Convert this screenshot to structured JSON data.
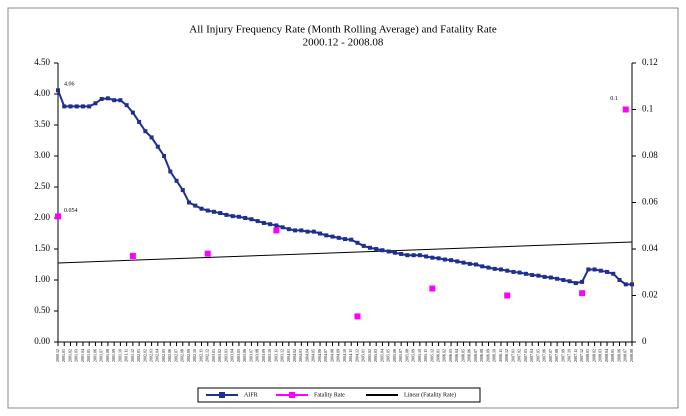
{
  "chart_data": {
    "type": "line",
    "title": "All Injury Frequency Rate (Month Rolling Average) and Fatality Rate",
    "subtitle": "2000.12 - 2008.08",
    "categories": [
      "2000.12",
      "2001.01",
      "2001.02",
      "2001.03",
      "2001.04",
      "2001.05",
      "2001.06",
      "2001.07",
      "2001.08",
      "2001.09",
      "2001.10",
      "2001.11",
      "2001.12",
      "2002.01",
      "2002.02",
      "2002.03",
      "2002.04",
      "2002.05",
      "2002.06",
      "2002.07",
      "2002.08",
      "2002.09",
      "2002.10",
      "2002.11",
      "2002.12",
      "2003.01",
      "2003.02",
      "2003.03",
      "2003.04",
      "2003.05",
      "2003.06",
      "2003.07",
      "2003.08",
      "2003.09",
      "2003.10",
      "2003.11",
      "2003.12",
      "2004.01",
      "2004.02",
      "2004.03",
      "2004.04",
      "2004.05",
      "2004.06",
      "2004.07",
      "2004.08",
      "2004.09",
      "2004.10",
      "2004.11",
      "2004.12",
      "2005.01",
      "2005.02",
      "2005.03",
      "2005.04",
      "2005.05",
      "2005.06",
      "2005.07",
      "2005.08",
      "2005.09",
      "2005.10",
      "2005.11",
      "2005.12",
      "2006.01",
      "2006.02",
      "2006.03",
      "2006.04",
      "2006.05",
      "2006.06",
      "2006.07",
      "2006.08",
      "2006.09",
      "2006.10",
      "2006.11",
      "2006.12",
      "2007.01",
      "2007.02",
      "2007.03",
      "2007.04",
      "2007.05",
      "2007.06",
      "2007.07",
      "2007.08",
      "2007.09",
      "2007.10",
      "2007.11",
      "2007.12",
      "2008.01",
      "2008.02",
      "2008.03",
      "2008.04",
      "2008.05",
      "2008.06",
      "2008.07",
      "2008.08"
    ],
    "series": [
      {
        "name": "AIFR",
        "color": "#1f2f8f",
        "marker": "square",
        "data_labels": [
          0
        ],
        "values": [
          4.06,
          3.8,
          3.8,
          3.8,
          3.8,
          3.8,
          3.85,
          3.92,
          3.93,
          3.9,
          3.9,
          3.82,
          3.7,
          3.55,
          3.4,
          3.3,
          3.15,
          3.0,
          2.75,
          2.6,
          2.45,
          2.25,
          2.2,
          2.15,
          2.12,
          2.1,
          2.08,
          2.05,
          2.03,
          2.02,
          2.0,
          1.98,
          1.95,
          1.92,
          1.9,
          1.88,
          1.85,
          1.82,
          1.8,
          1.8,
          1.78,
          1.78,
          1.75,
          1.72,
          1.7,
          1.68,
          1.66,
          1.65,
          1.6,
          1.55,
          1.52,
          1.5,
          1.48,
          1.46,
          1.44,
          1.42,
          1.4,
          1.4,
          1.4,
          1.38,
          1.36,
          1.35,
          1.33,
          1.32,
          1.3,
          1.28,
          1.26,
          1.25,
          1.22,
          1.2,
          1.18,
          1.17,
          1.15,
          1.13,
          1.12,
          1.1,
          1.08,
          1.07,
          1.05,
          1.04,
          1.02,
          1.0,
          0.98,
          0.95,
          0.97,
          1.17,
          1.17,
          1.15,
          1.13,
          1.1,
          1.0,
          0.93,
          0.93
        ]
      },
      {
        "name": "Fatality Rate",
        "color": "#ff00ff",
        "marker": "square",
        "axis": "y2",
        "line": false,
        "data_labels": [
          0,
          91
        ],
        "values": [
          0.054,
          null,
          null,
          null,
          null,
          null,
          null,
          null,
          null,
          null,
          null,
          null,
          0.037,
          null,
          null,
          null,
          null,
          null,
          null,
          null,
          null,
          null,
          null,
          null,
          0.038,
          null,
          null,
          null,
          null,
          null,
          null,
          null,
          null,
          null,
          null,
          0.048,
          null,
          null,
          null,
          null,
          null,
          null,
          null,
          null,
          null,
          null,
          null,
          null,
          0.011,
          null,
          null,
          null,
          null,
          null,
          null,
          null,
          null,
          null,
          null,
          null,
          0.023,
          null,
          null,
          null,
          null,
          null,
          null,
          null,
          null,
          null,
          null,
          null,
          0.02,
          null,
          null,
          null,
          null,
          null,
          null,
          null,
          null,
          null,
          null,
          null,
          0.021,
          null,
          null,
          null,
          null,
          null,
          null,
          0.1,
          null
        ]
      }
    ],
    "trend": {
      "name": "Linear (Fatality Rate)",
      "color": "#000000",
      "axis": "y2",
      "values": [
        0.034,
        0.043
      ]
    },
    "ylim": [
      0,
      4.5
    ],
    "yticks": [
      {
        "value": 0,
        "label": "0.00"
      },
      {
        "value": 0.5,
        "label": "0.50"
      },
      {
        "value": 1,
        "label": "1.00"
      },
      {
        "value": 1.5,
        "label": "1.50"
      },
      {
        "value": 2,
        "label": "2.00"
      },
      {
        "value": 2.5,
        "label": "2.50"
      },
      {
        "value": 3,
        "label": "3.00"
      },
      {
        "value": 3.5,
        "label": "3.50"
      },
      {
        "value": 4,
        "label": "4.00"
      },
      {
        "value": 4.5,
        "label": "4.50"
      }
    ],
    "y2lim": [
      0,
      0.12
    ],
    "y2ticks": [
      0,
      0.02,
      0.04,
      0.06,
      0.08,
      0.1,
      0.12
    ],
    "legend": "bottom"
  }
}
